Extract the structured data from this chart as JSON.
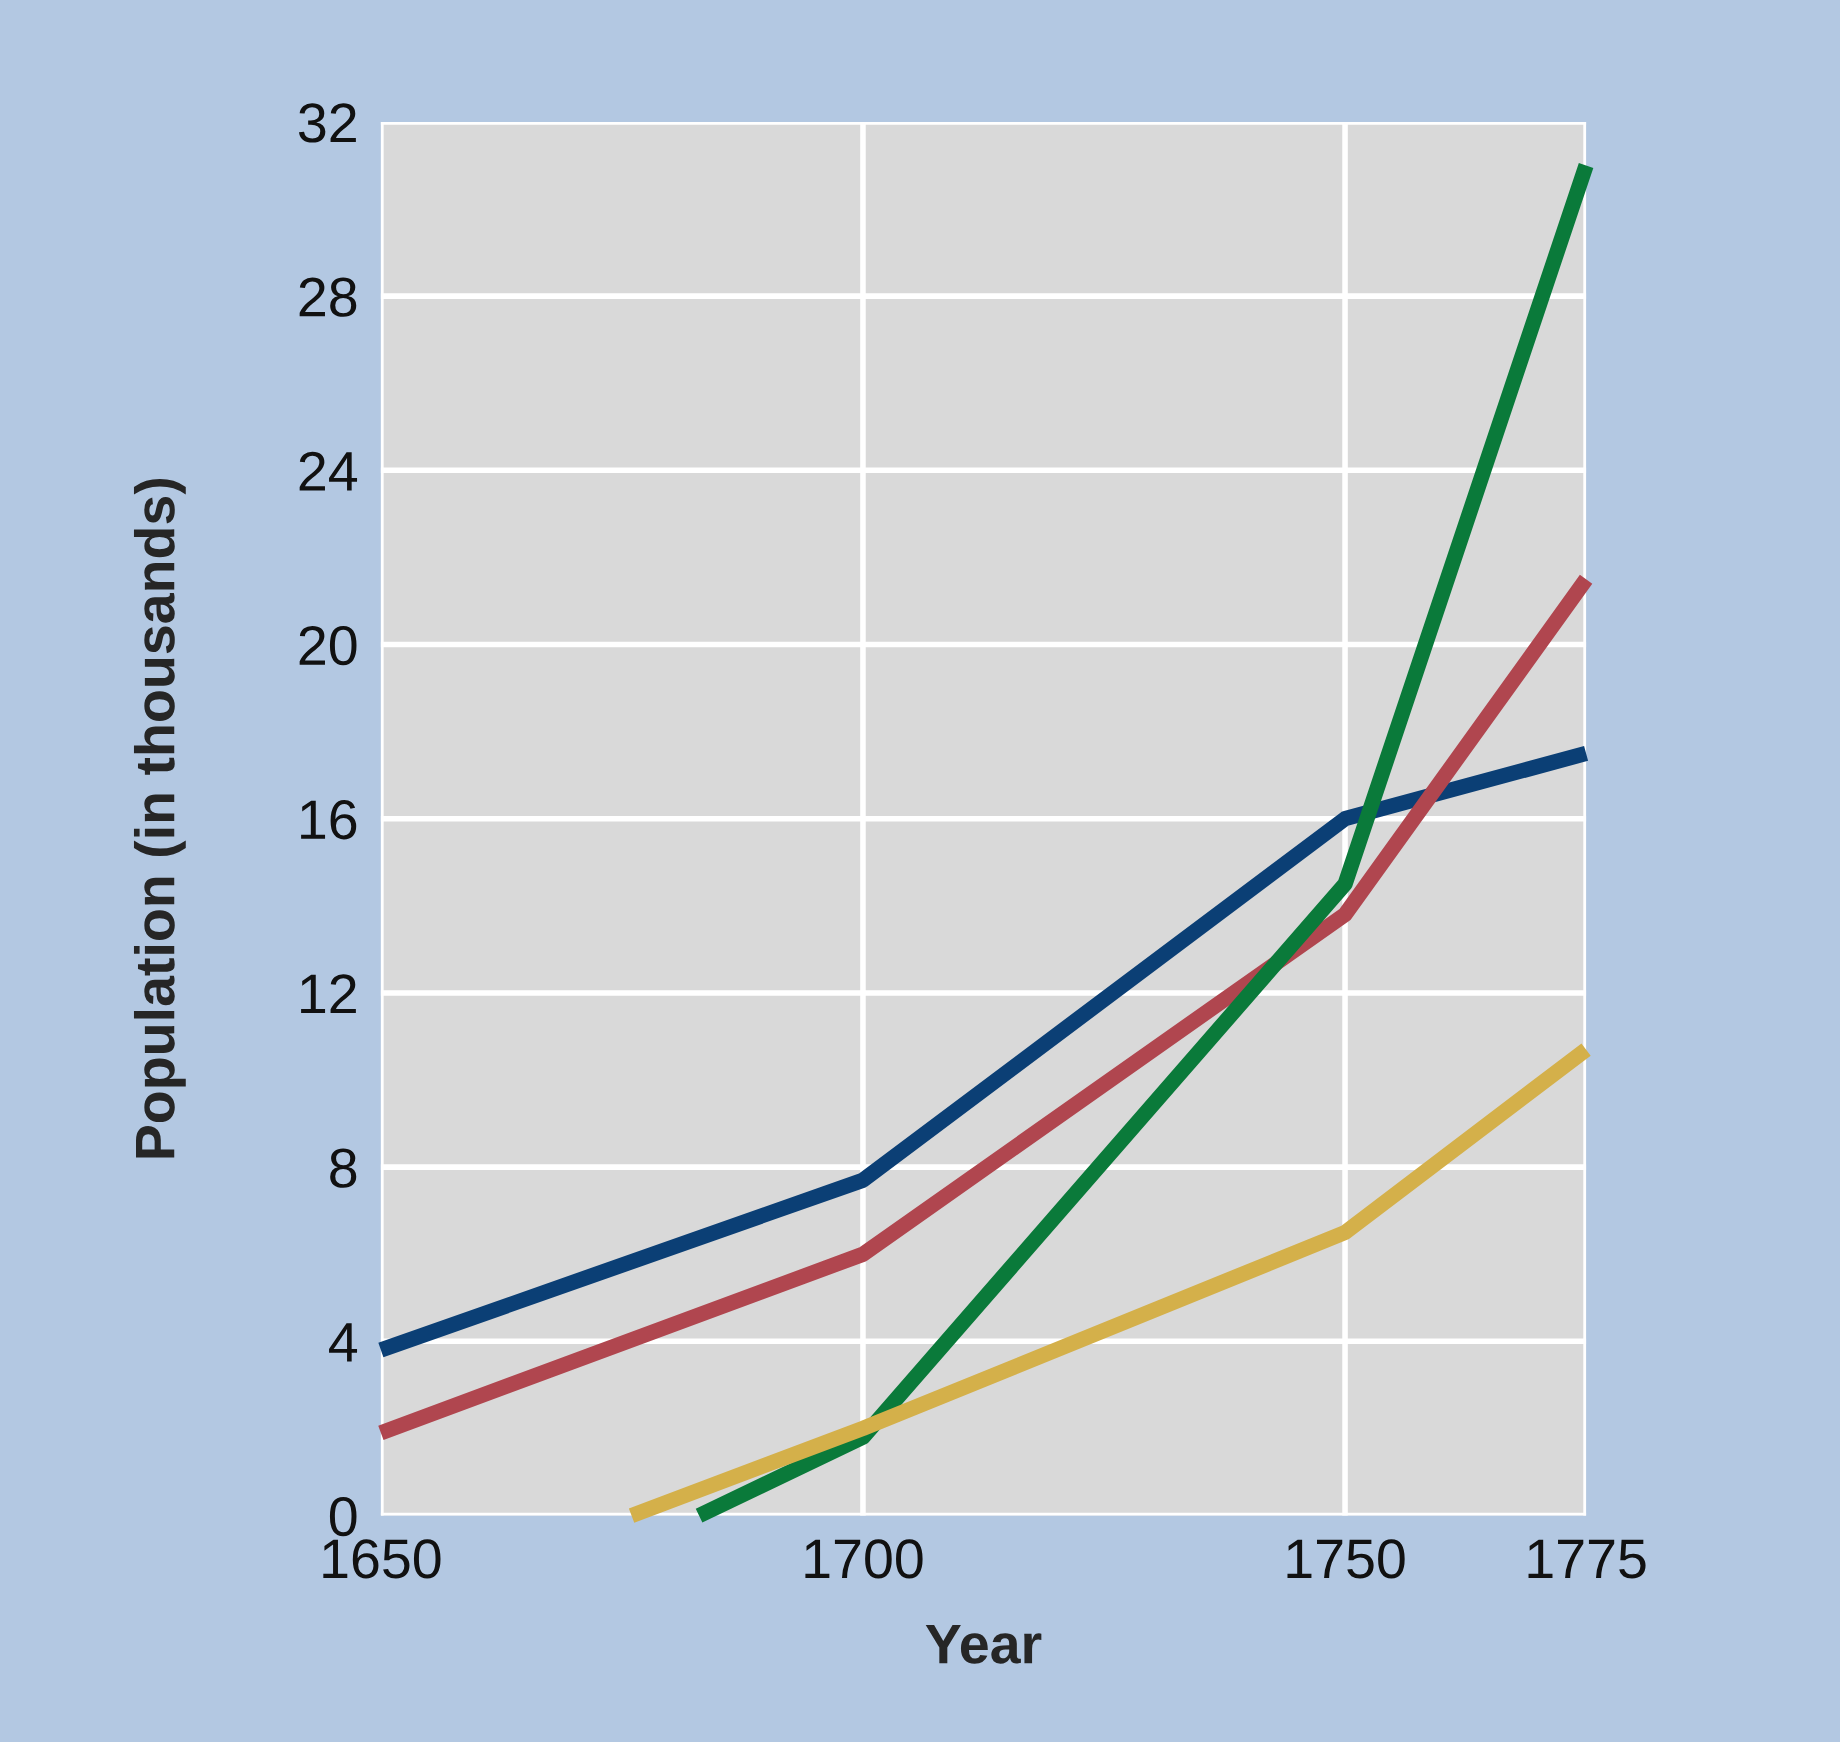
{
  "chart_data": {
    "type": "line",
    "xlabel": "Year",
    "ylabel": "Population (in thousands)",
    "xlim": [
      1650,
      1775
    ],
    "xticks": [
      1650,
      1700,
      1750,
      1775
    ],
    "ylim": [
      0,
      32
    ],
    "yticks": [
      0,
      4,
      8,
      12,
      16,
      20,
      24,
      28,
      32
    ],
    "grid": true,
    "marker": "none",
    "line_style": "solid",
    "series": [
      {
        "color": "#0b3f75",
        "x": [
          1650,
          1700,
          1750,
          1775
        ],
        "values": [
          3.8,
          7.7,
          16.0,
          17.5
        ]
      },
      {
        "color": "#b0464f",
        "x": [
          1650,
          1700,
          1750,
          1775
        ],
        "values": [
          1.9,
          6.0,
          13.8,
          21.5
        ]
      },
      {
        "color": "#0a7a3a",
        "x": [
          1683,
          1700,
          1750,
          1775
        ],
        "values": [
          0,
          1.8,
          14.5,
          31
        ]
      },
      {
        "color": "#d4b04a",
        "x": [
          1676,
          1700,
          1750,
          1775
        ],
        "values": [
          0,
          2.0,
          6.5,
          10.7
        ]
      }
    ]
  }
}
